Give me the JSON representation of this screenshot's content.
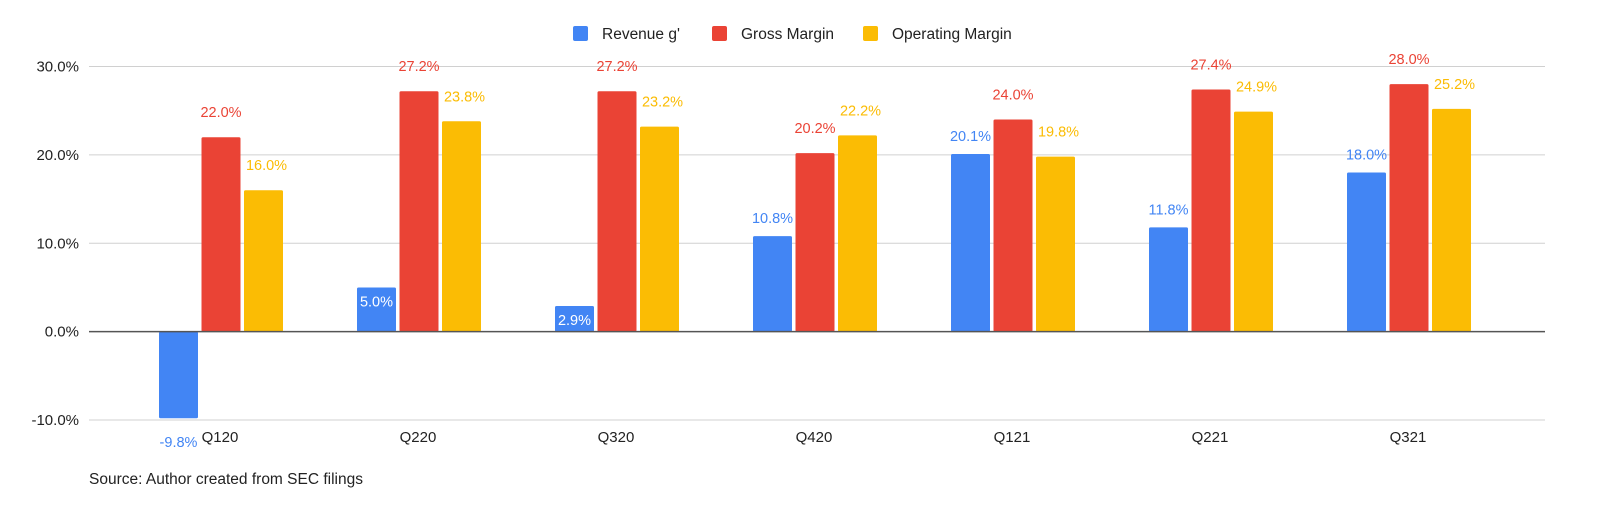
{
  "chart_data": {
    "type": "bar",
    "categories": [
      "Q120",
      "Q220",
      "Q320",
      "Q420",
      "Q121",
      "Q221",
      "Q321"
    ],
    "series": [
      {
        "name": "Revenue g'",
        "color": "#4285F4",
        "values": [
          -9.8,
          5.0,
          2.9,
          10.8,
          20.1,
          11.8,
          18.0
        ],
        "labels": [
          "-9.8%",
          "5.0%",
          "2.9%",
          "10.8%",
          "20.1%",
          "11.8%",
          "18.0%"
        ]
      },
      {
        "name": "Gross Margin",
        "color": "#EA4335",
        "values": [
          22.0,
          27.2,
          27.2,
          20.2,
          24.0,
          27.4,
          28.0
        ],
        "labels": [
          "22.0%",
          "27.2%",
          "27.2%",
          "20.2%",
          "24.0%",
          "27.4%",
          "28.0%"
        ]
      },
      {
        "name": "Operating Margin",
        "color": "#FBBC04",
        "values": [
          16.0,
          23.8,
          23.2,
          22.2,
          19.8,
          24.9,
          25.2
        ],
        "labels": [
          "16.0%",
          "23.8%",
          "23.2%",
          "22.2%",
          "19.8%",
          "24.9%",
          "25.2%"
        ]
      }
    ],
    "y_ticks": [
      30,
      20,
      10,
      0,
      -10
    ],
    "y_tick_labels": [
      "30.0%",
      "20.0%",
      "10.0%",
      "0.0%",
      "-10.0%"
    ],
    "ylim": [
      -10,
      30
    ],
    "grid": true,
    "legend_position": "top-center",
    "title": "",
    "xlabel": "",
    "ylabel": ""
  },
  "source_note": "Source: Author created from SEC filings",
  "colors": {
    "grid": "#d0d0d0",
    "zero_line": "#555555",
    "text": "#222222"
  }
}
